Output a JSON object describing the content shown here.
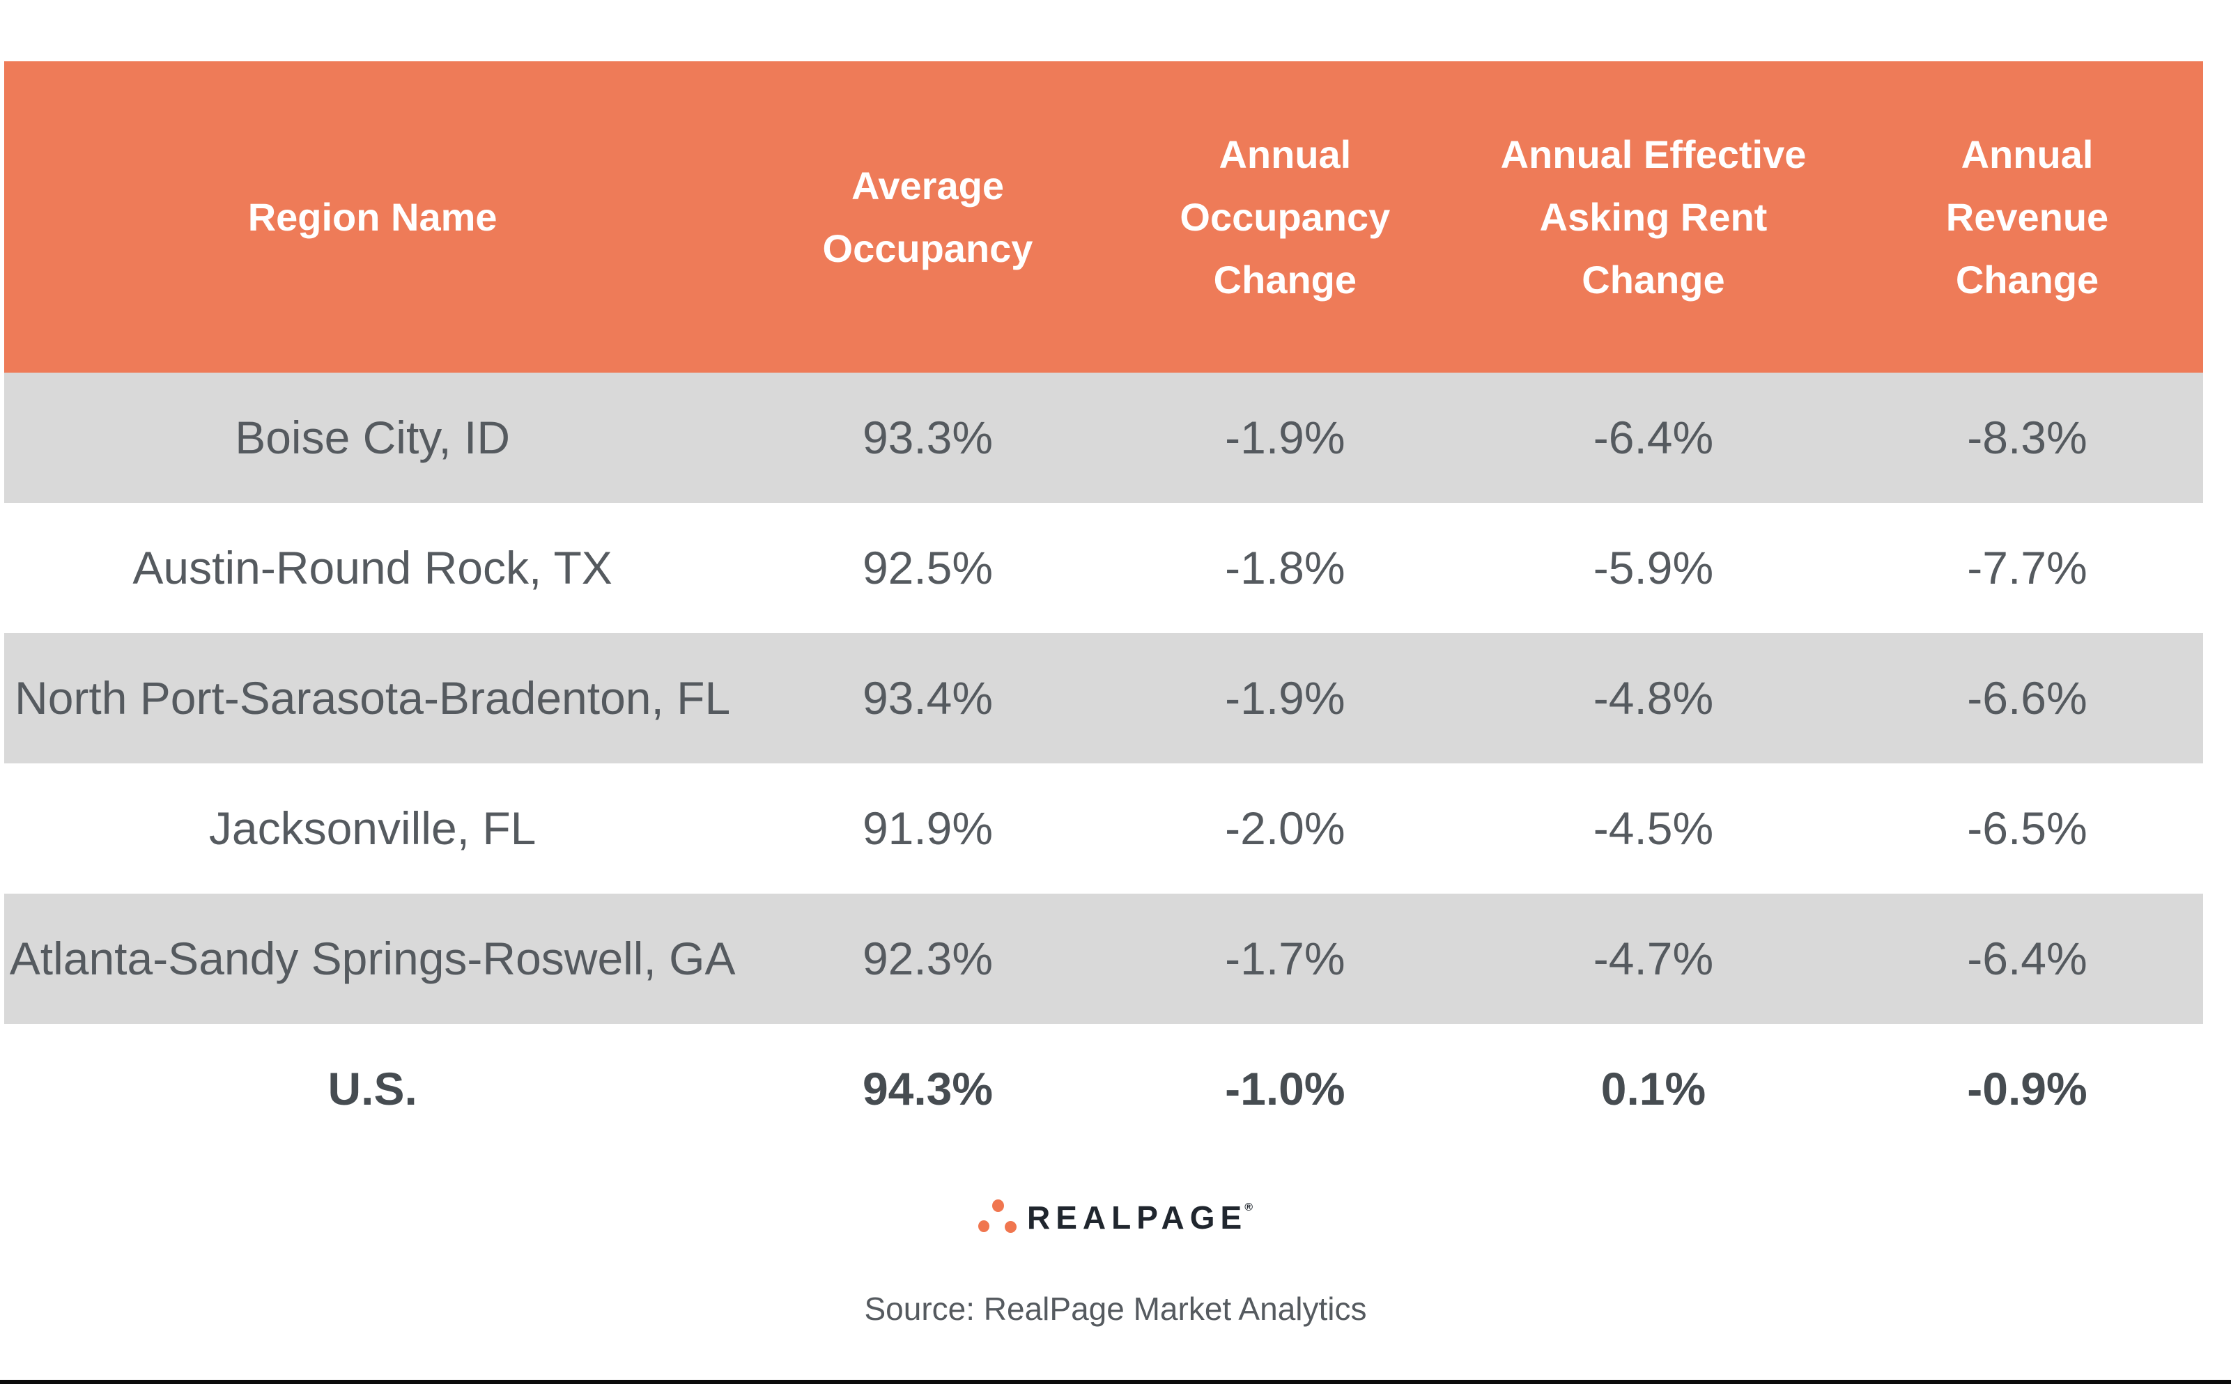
{
  "chart_data": {
    "type": "table",
    "title": "",
    "columns": [
      "Region Name",
      "Average\nOccupancy",
      "Annual\nOccupancy\nChange",
      "Annual Effective\nAsking Rent\nChange",
      "Annual\nRevenue\nChange"
    ],
    "rows": [
      [
        "Boise City, ID",
        "93.3%",
        "-1.9%",
        "-6.4%",
        "-8.3%"
      ],
      [
        "Austin-Round Rock, TX",
        "92.5%",
        "-1.8%",
        "-5.9%",
        "-7.7%"
      ],
      [
        "North Port-Sarasota-Bradenton, FL",
        "93.4%",
        "-1.9%",
        "-4.8%",
        "-6.6%"
      ],
      [
        "Jacksonville, FL",
        "91.9%",
        "-2.0%",
        "-4.5%",
        "-6.5%"
      ],
      [
        "Atlanta-Sandy Springs-Roswell, GA",
        "92.3%",
        "-1.7%",
        "-4.7%",
        "-6.4%"
      ],
      [
        "U.S.",
        "94.3%",
        "-1.0%",
        "0.1%",
        "-0.9%"
      ]
    ],
    "total_row_index": 5,
    "zebra_rows": [
      0,
      2,
      4
    ],
    "layout": {
      "zebra_color": "#D9D9D9",
      "header_bg": "#EE7B58",
      "header_text_color": "#FFFFFF",
      "cell_text_color": "#555A5F"
    }
  },
  "footer": {
    "brand_wordmark": "REALPAGE",
    "registered_mark": "®",
    "source_caption": "Source: RealPage Market Analytics"
  },
  "colors": {
    "header_bg": "#EE7B58",
    "zebra_row_bg": "#D9D9D9",
    "body_text": "#555A5F",
    "total_text": "#464C51",
    "logo_dot_orange": "#F0764F",
    "logo_text": "#20262E",
    "bottom_bar": "#0B0B0B"
  }
}
